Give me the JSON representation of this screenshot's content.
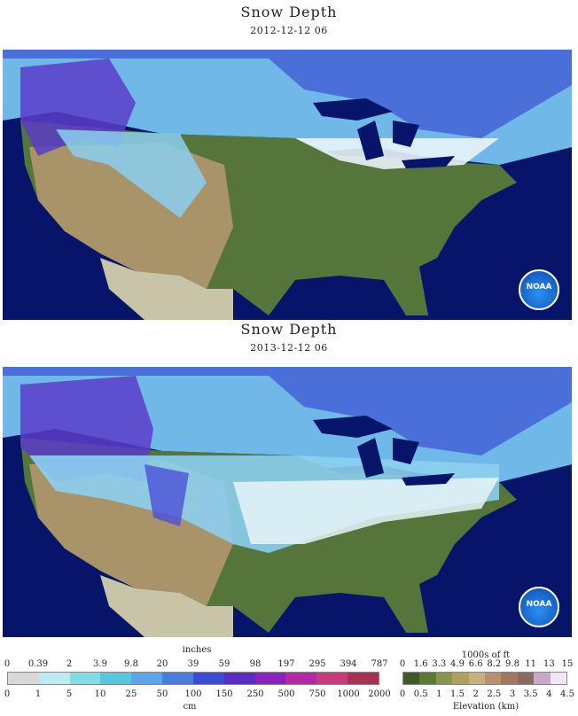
{
  "maps": [
    {
      "title": "Snow Depth",
      "date": "2012-12-12 06",
      "logo_text": "NOAA"
    },
    {
      "title": "Snow Depth",
      "date": "2013-12-12 06",
      "logo_text": "NOAA"
    }
  ],
  "snow_legend": {
    "top_unit": "inches",
    "bottom_unit": "cm",
    "inch_ticks": [
      "0",
      "0.39",
      "2",
      "3.9",
      "9.8",
      "20",
      "39",
      "59",
      "98",
      "197",
      "295",
      "394",
      "787"
    ],
    "cm_ticks": [
      "0",
      "1",
      "5",
      "10",
      "25",
      "50",
      "100",
      "150",
      "250",
      "500",
      "750",
      "1000",
      "2000"
    ],
    "colors": [
      "#d8d8d8",
      "#bdeaf0",
      "#7fdde6",
      "#55c8e0",
      "#5aa6e8",
      "#4a7de0",
      "#3c4ad8",
      "#5a2cc8",
      "#8a22c0",
      "#b22aa6",
      "#c83a7a",
      "#a83050"
    ]
  },
  "elev_legend": {
    "top_unit": "1000s of ft",
    "bottom_unit": "Elevation (km)",
    "ft_ticks": [
      "0",
      "1.6",
      "3.3",
      "4.9",
      "6.6",
      "8.2",
      "9.8",
      "11",
      "13",
      "15"
    ],
    "km_ticks": [
      "0",
      "0.5",
      "1",
      "1.5",
      "2",
      "2.5",
      "3",
      "3.5",
      "4",
      "4.5"
    ],
    "colors": [
      "#3e5a28",
      "#5c7a34",
      "#88954a",
      "#b0a060",
      "#c8b078",
      "#b89070",
      "#a07860",
      "#8a6a60",
      "#c8a8c8",
      "#f0e8f0"
    ]
  },
  "colors": {
    "ocean": "#06146a",
    "land": "#55753a",
    "canada_snow": "#6fb8e8",
    "snow_light": "#e8f4f8"
  }
}
